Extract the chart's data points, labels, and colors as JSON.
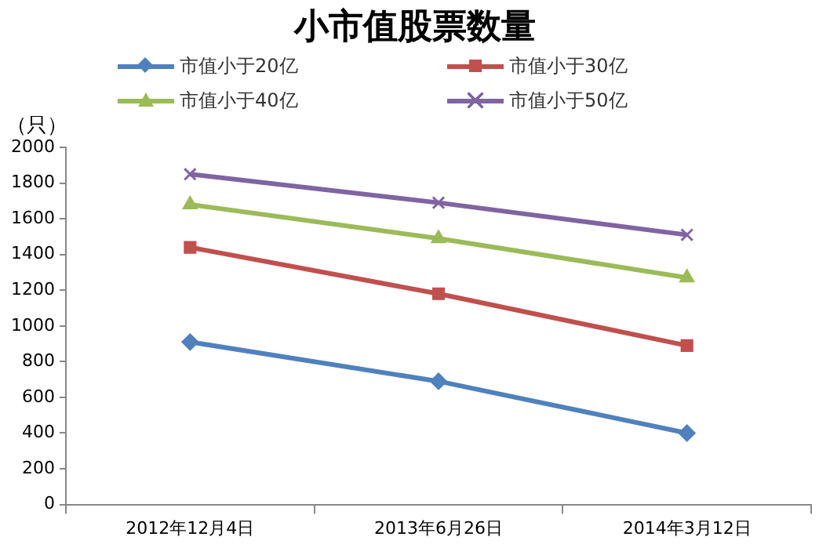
{
  "chart_data": {
    "type": "line",
    "title": "小市值股票数量",
    "ylabel": "（只）",
    "categories": [
      "2012年12月4日",
      "2013年6月26日",
      "2014年3月12日"
    ],
    "series": [
      {
        "name": "市值小于20亿",
        "color": "#4f81bd",
        "marker": "diamond",
        "values": [
          910,
          690,
          400
        ]
      },
      {
        "name": "市值小于30亿",
        "color": "#c0504d",
        "marker": "square",
        "values": [
          1440,
          1180,
          890
        ]
      },
      {
        "name": "市值小于40亿",
        "color": "#9bbb59",
        "marker": "triangle",
        "values": [
          1680,
          1490,
          1270
        ]
      },
      {
        "name": "市值小于50亿",
        "color": "#8064a2",
        "marker": "cross",
        "values": [
          1850,
          1690,
          1510
        ]
      }
    ],
    "ylim": [
      0,
      2000
    ],
    "yticks": [
      0,
      200,
      400,
      600,
      800,
      1000,
      1200,
      1400,
      1600,
      1800,
      2000
    ],
    "grid": false,
    "legend": "top",
    "line_style": "solid"
  }
}
